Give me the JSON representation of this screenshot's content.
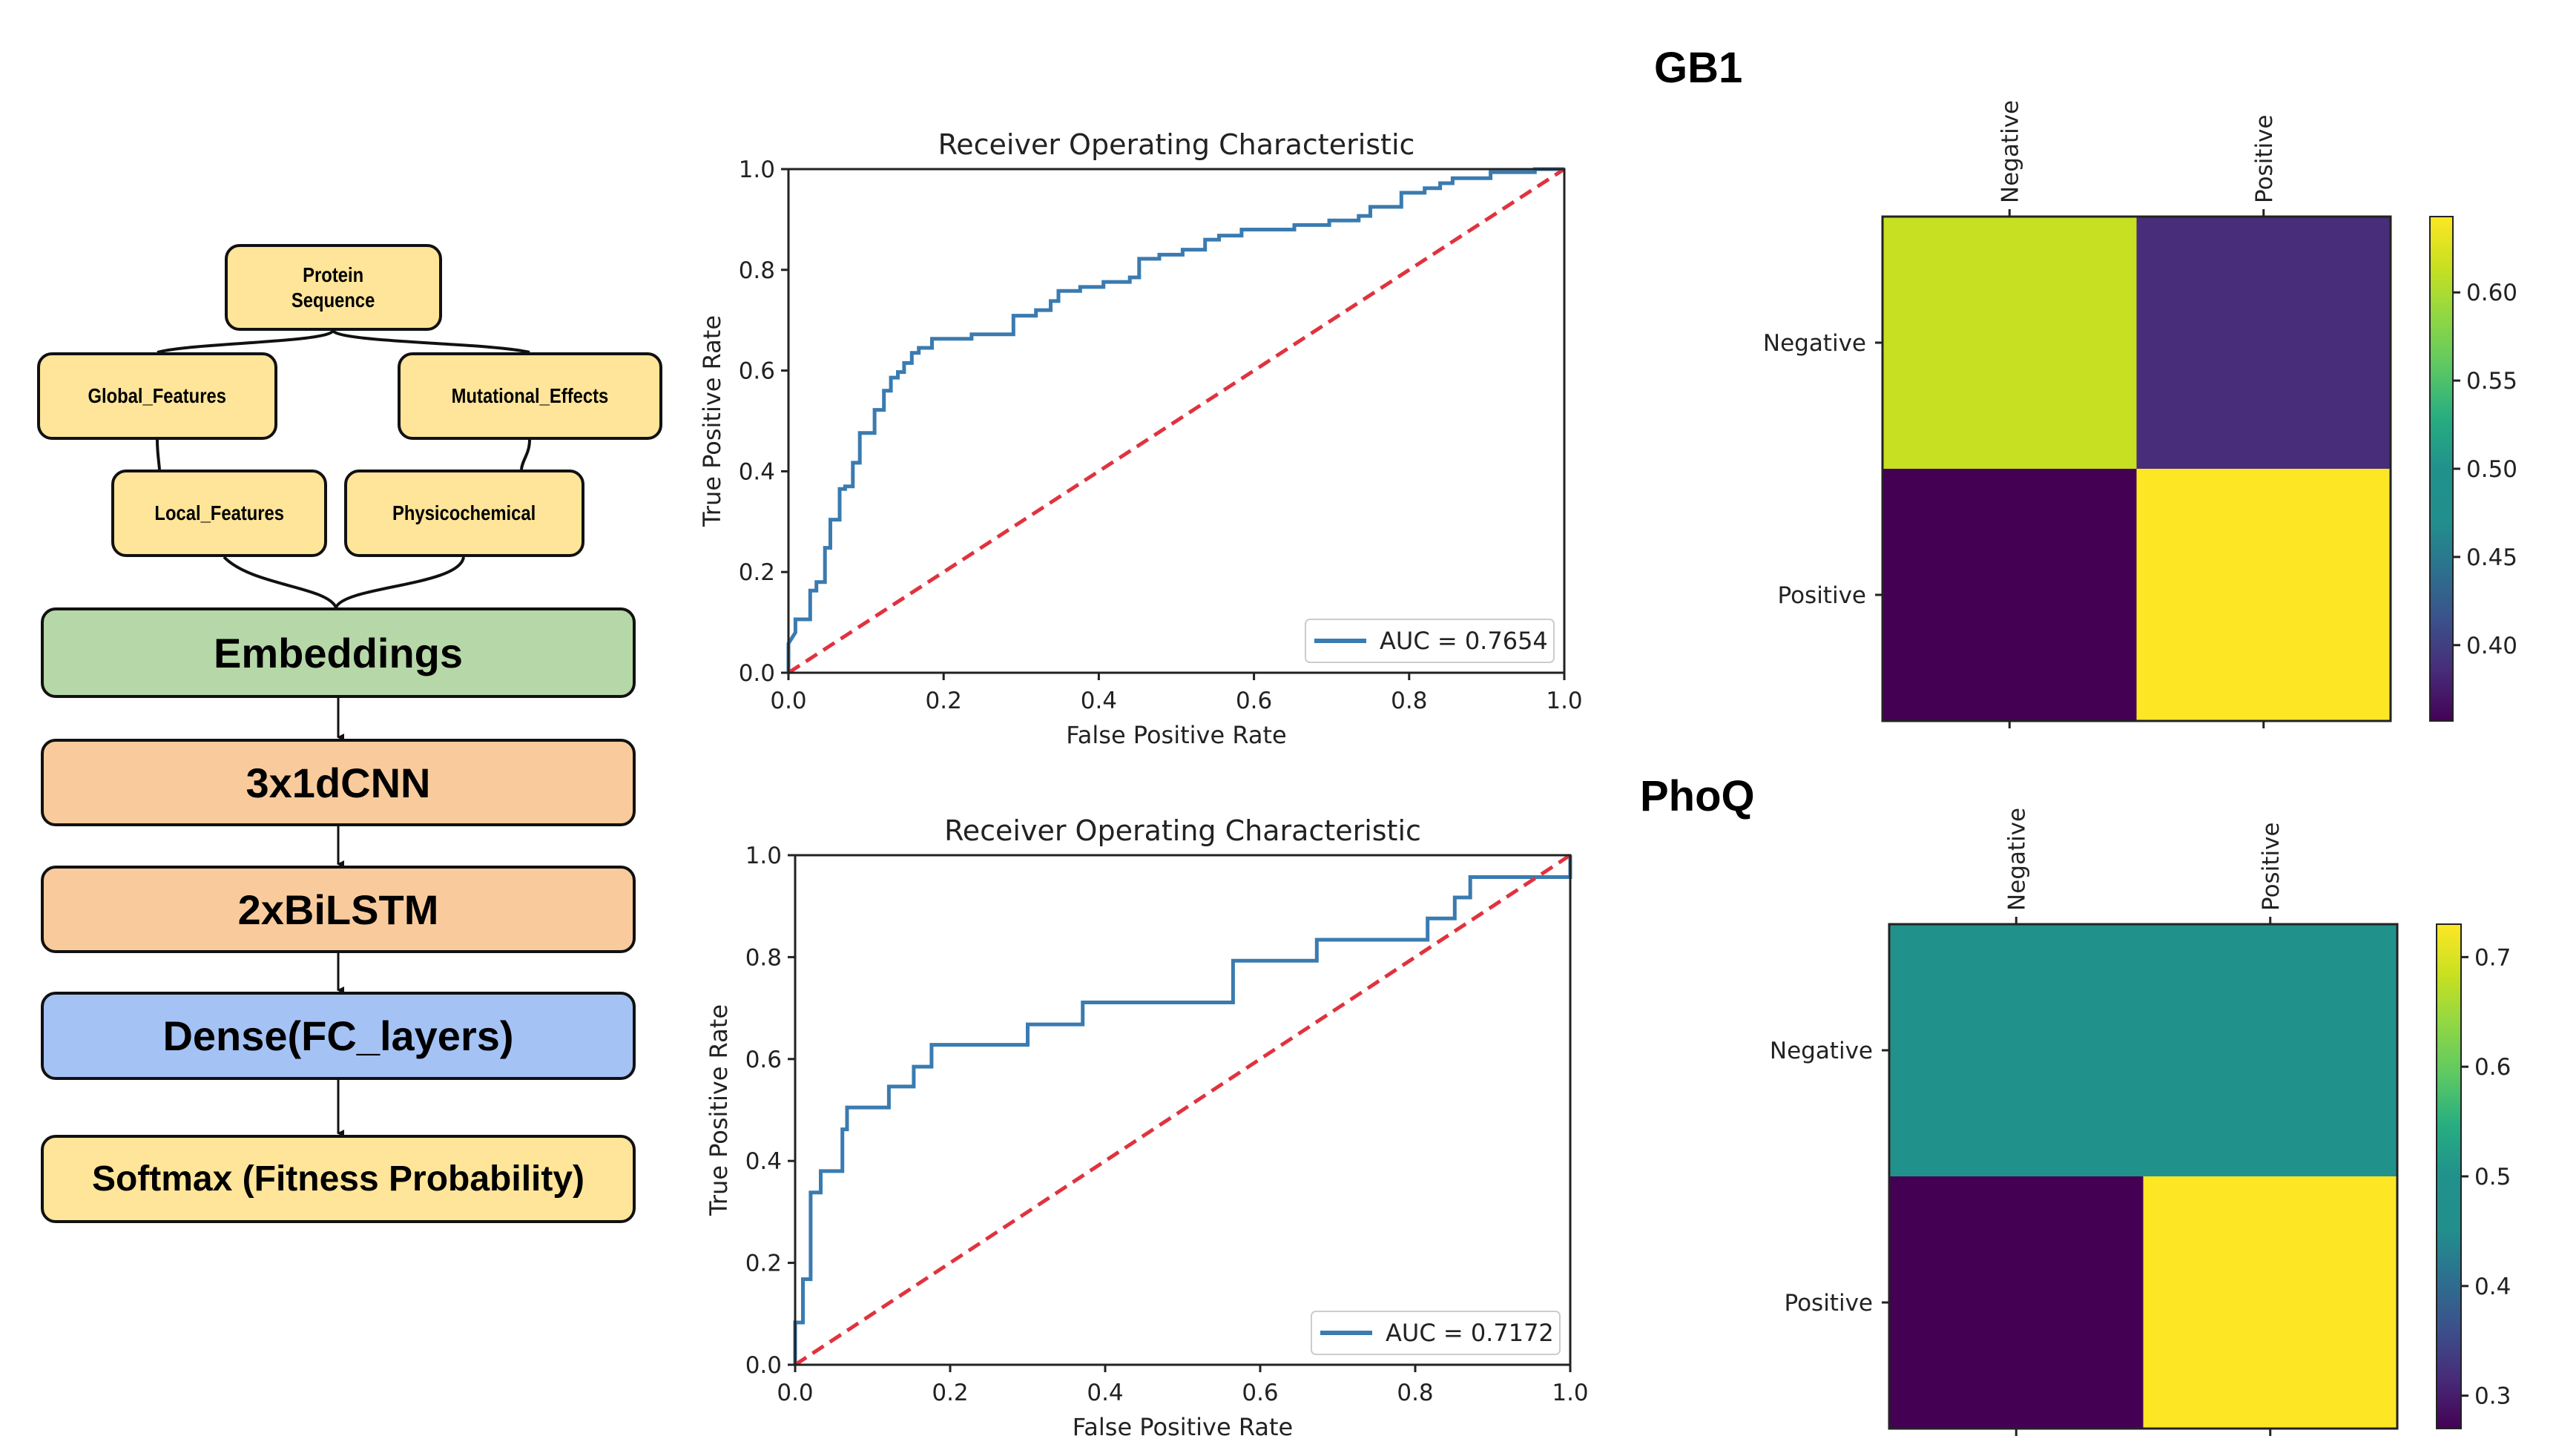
{
  "diagram": {
    "nodes": {
      "protein_sequence": "Protein\nSequence",
      "global_features": "Global_Features",
      "mutational_effects": "Mutational_Effects",
      "local_features": "Local_Features",
      "physicochemical": "Physicochemical",
      "embeddings": "Embeddings",
      "cnn": "3x1dCNN",
      "bilstm": "2xBiLSTM",
      "dense": "Dense(FC_layers)",
      "softmax": "Softmax (Fitness Probability)"
    },
    "colors": {
      "input": "#ffe599",
      "embedding": "#b6d7a8",
      "recurrent": "#f9cb9c",
      "dense": "#a4c2f4",
      "output": "#ffe599"
    }
  },
  "datasets": {
    "gb1": "GB1",
    "phoq": "PhoQ"
  },
  "chart_data": [
    {
      "type": "line",
      "id": "gb1-roc",
      "title": "Receiver Operating Characteristic",
      "xlabel": "False Positive Rate",
      "ylabel": "True Positive Rate",
      "xlim": [
        0,
        1
      ],
      "ylim": [
        0,
        1
      ],
      "xticks": [
        "0.0",
        "0.2",
        "0.4",
        "0.6",
        "0.8",
        "1.0"
      ],
      "yticks": [
        "0.0",
        "0.2",
        "0.4",
        "0.6",
        "0.8",
        "1.0"
      ],
      "legend": "AUC = 0.7654",
      "legend_position": "lower-right",
      "series": [
        {
          "name": "AUC = 0.7654",
          "color": "#3a7bb0",
          "x": [
            0,
            0,
            0.009,
            0.009,
            0.028,
            0.028,
            0.036,
            0.036,
            0.047,
            0.047,
            0.054,
            0.054,
            0.066,
            0.066,
            0.073,
            0.073,
            0.083,
            0.083,
            0.092,
            0.092,
            0.111,
            0.111,
            0.123,
            0.123,
            0.132,
            0.132,
            0.141,
            0.141,
            0.149,
            0.149,
            0.159,
            0.159,
            0.168,
            0.168,
            0.185,
            0.185,
            0.236,
            0.236,
            0.29,
            0.29,
            0.319,
            0.319,
            0.338,
            0.338,
            0.348,
            0.348,
            0.376,
            0.376,
            0.406,
            0.406,
            0.44,
            0.44,
            0.452,
            0.452,
            0.478,
            0.478,
            0.508,
            0.508,
            0.537,
            0.537,
            0.555,
            0.555,
            0.584,
            0.584,
            0.652,
            0.652,
            0.697,
            0.697,
            0.735,
            0.735,
            0.75,
            0.75,
            0.79,
            0.79,
            0.82,
            0.82,
            0.84,
            0.84,
            0.856,
            0.856,
            0.905,
            0.905,
            0.962,
            0.962,
            1.0
          ],
          "y": [
            0,
            0.058,
            0.08,
            0.106,
            0.106,
            0.163,
            0.163,
            0.18,
            0.18,
            0.248,
            0.248,
            0.304,
            0.304,
            0.365,
            0.365,
            0.37,
            0.37,
            0.417,
            0.417,
            0.476,
            0.476,
            0.522,
            0.522,
            0.56,
            0.56,
            0.586,
            0.586,
            0.597,
            0.597,
            0.615,
            0.615,
            0.635,
            0.635,
            0.645,
            0.645,
            0.663,
            0.663,
            0.672,
            0.672,
            0.709,
            0.709,
            0.72,
            0.72,
            0.738,
            0.738,
            0.758,
            0.758,
            0.766,
            0.766,
            0.776,
            0.776,
            0.785,
            0.785,
            0.822,
            0.822,
            0.83,
            0.83,
            0.84,
            0.84,
            0.86,
            0.86,
            0.868,
            0.868,
            0.88,
            0.88,
            0.889,
            0.889,
            0.898,
            0.898,
            0.907,
            0.907,
            0.925,
            0.925,
            0.953,
            0.953,
            0.962,
            0.962,
            0.972,
            0.972,
            0.982,
            0.982,
            0.994,
            0.994,
            1.0,
            1.0
          ]
        },
        {
          "name": "chance",
          "color": "#e0333f",
          "style": "dashed",
          "x": [
            0,
            1
          ],
          "y": [
            0,
            1
          ]
        }
      ]
    },
    {
      "type": "line",
      "id": "phoq-roc",
      "title": "Receiver Operating Characteristic",
      "xlabel": "False Positive Rate",
      "ylabel": "True Positive Rate",
      "xlim": [
        0,
        1
      ],
      "ylim": [
        0,
        1
      ],
      "xticks": [
        "0.0",
        "0.2",
        "0.4",
        "0.6",
        "0.8",
        "1.0"
      ],
      "yticks": [
        "0.0",
        "0.2",
        "0.4",
        "0.6",
        "0.8",
        "1.0"
      ],
      "legend": "AUC = 0.7172",
      "legend_position": "lower-right",
      "series": [
        {
          "name": "AUC = 0.7172",
          "color": "#3a7bb0",
          "x": [
            0,
            0,
            0.01,
            0.01,
            0.02,
            0.02,
            0.033,
            0.033,
            0.061,
            0.061,
            0.067,
            0.067,
            0.121,
            0.121,
            0.153,
            0.153,
            0.176,
            0.176,
            0.3,
            0.3,
            0.371,
            0.371,
            0.565,
            0.565,
            0.673,
            0.673,
            0.816,
            0.816,
            0.851,
            0.851,
            0.871,
            0.871,
            1.0,
            1.0
          ],
          "y": [
            0,
            0.083,
            0.083,
            0.168,
            0.168,
            0.338,
            0.338,
            0.38,
            0.38,
            0.462,
            0.462,
            0.505,
            0.505,
            0.546,
            0.546,
            0.585,
            0.585,
            0.628,
            0.628,
            0.668,
            0.668,
            0.711,
            0.711,
            0.793,
            0.793,
            0.834,
            0.834,
            0.876,
            0.876,
            0.917,
            0.917,
            0.957,
            0.957,
            1.0
          ]
        },
        {
          "name": "chance",
          "color": "#e0333f",
          "style": "dashed",
          "x": [
            0,
            1
          ],
          "y": [
            0,
            1
          ]
        }
      ]
    },
    {
      "type": "heatmap",
      "id": "gb1-confusion",
      "title": "GB1",
      "row_labels": [
        "Negative",
        "Positive"
      ],
      "col_labels": [
        "Negative",
        "Positive"
      ],
      "values": [
        [
          0.614,
          0.386
        ],
        [
          0.357,
          0.643
        ]
      ],
      "colormap": "viridis",
      "colorbar_range": [
        0.357,
        0.643
      ],
      "colorbar_ticks": [
        "0.40",
        "0.45",
        "0.50",
        "0.55",
        "0.60"
      ],
      "colorbar_tick_values": [
        0.4,
        0.45,
        0.5,
        0.55,
        0.6
      ]
    },
    {
      "type": "heatmap",
      "id": "phoq-confusion",
      "title": "PhoQ",
      "row_labels": [
        "Negative",
        "Positive"
      ],
      "col_labels": [
        "Negative",
        "Positive"
      ],
      "values": [
        [
          0.5,
          0.5
        ],
        [
          0.27,
          0.73
        ]
      ],
      "colormap": "viridis",
      "colorbar_range": [
        0.27,
        0.73
      ],
      "colorbar_ticks": [
        "0.3",
        "0.4",
        "0.5",
        "0.6",
        "0.7"
      ],
      "colorbar_tick_values": [
        0.3,
        0.4,
        0.5,
        0.6,
        0.7
      ]
    }
  ]
}
